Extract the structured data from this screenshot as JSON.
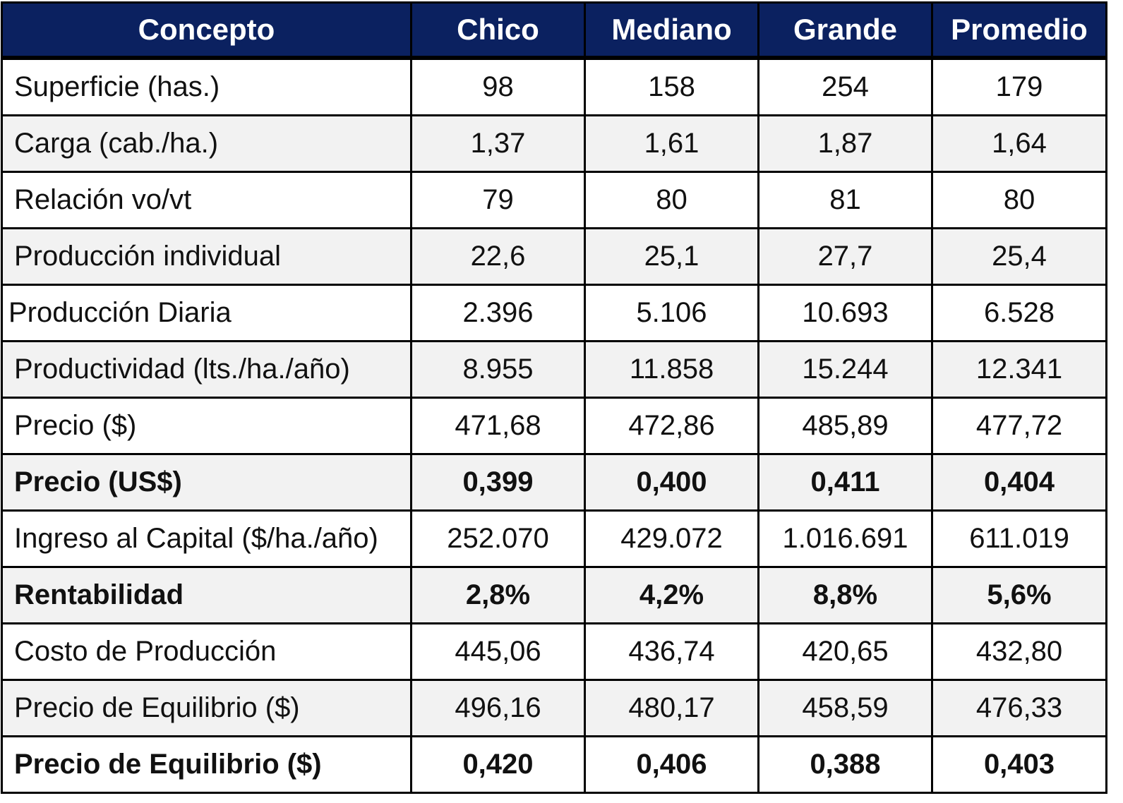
{
  "table": {
    "headers": [
      "Concepto",
      "Chico",
      "Mediano",
      "Grande",
      "Promedio"
    ],
    "rows": [
      {
        "label": "Superficie (has.)",
        "values": [
          "98",
          "158",
          "254",
          "179"
        ]
      },
      {
        "label": "Carga (cab./ha.)",
        "values": [
          "1,37",
          "1,61",
          "1,87",
          "1,64"
        ]
      },
      {
        "label": "Relación vo/vt",
        "values": [
          "79",
          "80",
          "81",
          "80"
        ]
      },
      {
        "label": "Producción individual",
        "values": [
          "22,6",
          "25,1",
          "27,7",
          "25,4"
        ]
      },
      {
        "label": "Producción Diaria",
        "values": [
          "2.396",
          "5.106",
          "10.693",
          "6.528"
        ]
      },
      {
        "label": "Productividad (lts./ha./año)",
        "values": [
          "8.955",
          "11.858",
          "15.244",
          "12.341"
        ]
      },
      {
        "label": "Precio ($)",
        "values": [
          "471,68",
          "472,86",
          "485,89",
          "477,72"
        ]
      },
      {
        "label": "Precio (US$)",
        "values": [
          "0,399",
          "0,400",
          "0,411",
          "0,404"
        ]
      },
      {
        "label": "Ingreso al Capital ($/ha./año)",
        "values": [
          "252.070",
          "429.072",
          "1.016.691",
          "611.019"
        ]
      },
      {
        "label": "Rentabilidad",
        "values": [
          "2,8%",
          "4,2%",
          "8,8%",
          "5,6%"
        ]
      },
      {
        "label": "Costo de Producción",
        "values": [
          "445,06",
          "436,74",
          "420,65",
          "432,80"
        ]
      },
      {
        "label": "Precio de Equilibrio ($)",
        "values": [
          "496,16",
          "480,17",
          "458,59",
          "476,33"
        ]
      },
      {
        "label": "Precio de Equilibrio ($)",
        "values": [
          "0,420",
          "0,406",
          "0,388",
          "0,403"
        ]
      }
    ]
  },
  "colors": {
    "header_background": "#0b2160",
    "header_text": "#ffffff",
    "row_shading": "#f2f2f2",
    "border": "#000000"
  }
}
